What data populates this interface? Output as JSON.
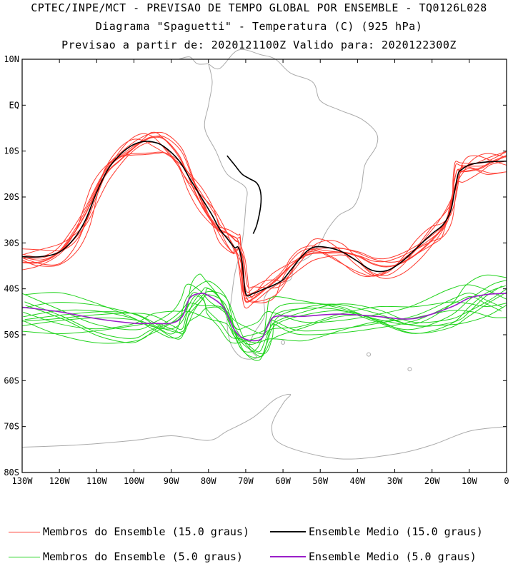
{
  "header": {
    "line1": "CPTEC/INPE/MCT - PREVISAO DE TEMPO GLOBAL POR ENSEMBLE - TQ0126L028",
    "line2": "Diagrama \"Spaguetti\" - Temperatura (C) (925 hPa)",
    "line3": "Previsao a partir de: 2020121100Z  Valido para: 2020122300Z"
  },
  "chart_data": {
    "type": "line",
    "title": "Diagrama \"Spaguetti\" - Temperatura (C) (925 hPa)",
    "xlim": [
      -130,
      0
    ],
    "ylim": [
      -80,
      10
    ],
    "x_ticks": [
      {
        "value": -130,
        "label": "130W"
      },
      {
        "value": -120,
        "label": "120W"
      },
      {
        "value": -110,
        "label": "110W"
      },
      {
        "value": -100,
        "label": "100W"
      },
      {
        "value": -90,
        "label": "90W"
      },
      {
        "value": -80,
        "label": "80W"
      },
      {
        "value": -70,
        "label": "70W"
      },
      {
        "value": -60,
        "label": "60W"
      },
      {
        "value": -50,
        "label": "50W"
      },
      {
        "value": -40,
        "label": "40W"
      },
      {
        "value": -30,
        "label": "30W"
      },
      {
        "value": -20,
        "label": "20W"
      },
      {
        "value": -10,
        "label": "10W"
      },
      {
        "value": 0,
        "label": "0"
      }
    ],
    "y_ticks": [
      {
        "value": 10,
        "label": "10N"
      },
      {
        "value": 0,
        "label": "EQ"
      },
      {
        "value": -10,
        "label": "10S"
      },
      {
        "value": -20,
        "label": "20S"
      },
      {
        "value": -30,
        "label": "30S"
      },
      {
        "value": -40,
        "label": "40S"
      },
      {
        "value": -50,
        "label": "50S"
      },
      {
        "value": -60,
        "label": "60S"
      },
      {
        "value": -70,
        "label": "70S"
      },
      {
        "value": -80,
        "label": "80S"
      }
    ],
    "legend": [
      {
        "name": "Membros do Ensemble (15.0 graus)",
        "color": "#ff3b30"
      },
      {
        "name": "Ensemble Medio (15.0 graus)",
        "color": "#000000"
      },
      {
        "name": "Membros do Ensemble (5.0 graus)",
        "color": "#22d41e"
      },
      {
        "name": "Ensemble Medio (5.0 graus)",
        "color": "#9a1ec8"
      }
    ],
    "series": [
      {
        "name": "Ensemble Medio (15.0 graus)",
        "color": "#000000",
        "x": [
          -130,
          -125,
          -120,
          -116,
          -113,
          -110,
          -107,
          -104,
          -101,
          -98,
          -95,
          -92,
          -88,
          -85,
          -82,
          -79,
          -77,
          -75,
          -73,
          -72,
          -71,
          -70,
          -68,
          -65,
          -62,
          -60,
          -58,
          -55,
          -52,
          -48,
          -44,
          -40,
          -36,
          -32,
          -28,
          -24,
          -20,
          -17,
          -15,
          -14,
          -13,
          -12,
          -10,
          -7,
          -4,
          0
        ],
        "y": [
          -33,
          -33,
          -32,
          -29,
          -25,
          -19,
          -14,
          -11,
          -9,
          -8,
          -8,
          -9,
          -12,
          -16,
          -20,
          -24,
          -27,
          -29,
          -31,
          -31,
          -34,
          -41,
          -41,
          -40,
          -39,
          -38,
          -36,
          -33,
          -31,
          -31,
          -32,
          -34,
          -36,
          -36,
          -34,
          -31,
          -28,
          -26,
          -23,
          -19,
          -15,
          -14,
          -13,
          -12.5,
          -12.3,
          -12.2
        ]
      },
      {
        "name": "Ensemble Medio (15.0 graus)",
        "color": "#000000",
        "x": [
          -75,
          -73,
          -71,
          -69,
          -67,
          -66,
          -66,
          -67,
          -68
        ],
        "y": [
          -11,
          -13,
          -15,
          -16,
          -17,
          -19,
          -22,
          -26,
          -28
        ]
      },
      {
        "name": "Ensemble Medio (5.0 graus)",
        "color": "#9a1ec8",
        "x": [
          -130,
          -120,
          -110,
          -100,
          -95,
          -90,
          -87,
          -85,
          -82,
          -80,
          -76,
          -73,
          -70,
          -66,
          -64,
          -62,
          -55,
          -45,
          -35,
          -25,
          -15,
          -10,
          -5,
          0
        ],
        "y": [
          -44,
          -45,
          -46.5,
          -47.5,
          -47.5,
          -47.5,
          -46,
          -42,
          -41,
          -41.5,
          -44,
          -49,
          -51,
          -51,
          -48,
          -46,
          -46,
          -45.5,
          -46,
          -46.5,
          -44,
          -42,
          -41.2,
          -41
        ]
      }
    ],
    "member_series": [
      {
        "group": "Membros do Ensemble (15.0 graus)",
        "color": "#ff3b30",
        "x": [
          -130,
          -125,
          -120,
          -116,
          -113,
          -110,
          -107,
          -104,
          -101,
          -98,
          -95,
          -92,
          -88,
          -85,
          -82,
          -79,
          -77,
          -75,
          -73,
          -72,
          -71,
          -70,
          -68,
          -65,
          -62,
          -60,
          -58,
          -55,
          -52,
          -48,
          -44,
          -40,
          -36,
          -32,
          -28,
          -24,
          -20,
          -17,
          -15,
          -14,
          -13,
          -12,
          -10,
          -7,
          -4,
          0
        ],
        "y": [
          -33,
          -33,
          -32,
          -29,
          -25,
          -19,
          -14,
          -11,
          -9,
          -8,
          -8,
          -9,
          -12,
          -16,
          -20,
          -24,
          -27,
          -29,
          -31,
          -31,
          -34,
          -41,
          -41,
          -40,
          -39,
          -38,
          -36,
          -33,
          -31,
          -31,
          -32,
          -34,
          -36,
          -36,
          -34,
          -31,
          -28,
          -26,
          -23,
          -19,
          -15,
          -14,
          -13,
          -12.5,
          -12.3,
          -12.2
        ],
        "variants": 10
      },
      {
        "group": "Membros do Ensemble (5.0 graus)",
        "color": "#22d41e",
        "x": [
          -130,
          -120,
          -110,
          -100,
          -95,
          -90,
          -87,
          -85,
          -82,
          -80,
          -76,
          -73,
          -70,
          -66,
          -64,
          -62,
          -55,
          -45,
          -35,
          -25,
          -15,
          -10,
          -5,
          0
        ],
        "y": [
          -44,
          -45,
          -46.5,
          -47.5,
          -47.5,
          -47.5,
          -46,
          -42,
          -41,
          -41.5,
          -44,
          -49,
          -51,
          -51,
          -48,
          -46,
          -46,
          -45.5,
          -46,
          -46.5,
          -44,
          -42,
          -41.2,
          -41
        ],
        "variants": 12
      }
    ]
  },
  "legend_labels": {
    "red": "Membros do Ensemble (15.0 graus)",
    "black": "Ensemble Medio (15.0 graus)",
    "green": "Membros do Ensemble (5.0 graus)",
    "purple": "Ensemble Medio (5.0 graus)"
  },
  "colors": {
    "red": "#ff3b30",
    "black": "#000000",
    "green": "#22d41e",
    "purple": "#9a1ec8",
    "coast": "#aaaaaa"
  }
}
